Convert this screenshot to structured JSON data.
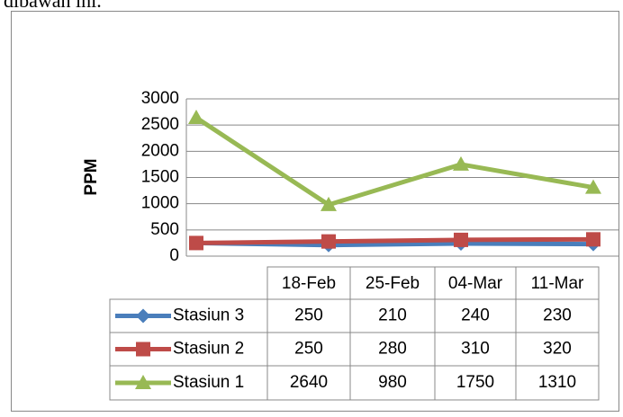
{
  "caption": "dibawah ini.",
  "chart_data": {
    "type": "line",
    "y_label": "PPM",
    "categories": [
      "18-Feb",
      "25-Feb",
      "04-Mar",
      "11-Mar"
    ],
    "series": [
      {
        "name": "Stasiun 3",
        "color": "#4a7ebb",
        "marker": "diamond",
        "values": [
          250,
          210,
          240,
          230
        ]
      },
      {
        "name": "Stasiun 2",
        "color": "#be4b48",
        "marker": "square",
        "values": [
          250,
          280,
          310,
          320
        ]
      },
      {
        "name": "Stasiun 1",
        "color": "#98b954",
        "marker": "triangle",
        "values": [
          2640,
          980,
          1750,
          1310
        ]
      }
    ],
    "ylim": [
      0,
      3000
    ],
    "yticks": [
      0,
      500,
      1000,
      1500,
      2000,
      2500,
      3000
    ],
    "grid": true,
    "data_table": true
  }
}
